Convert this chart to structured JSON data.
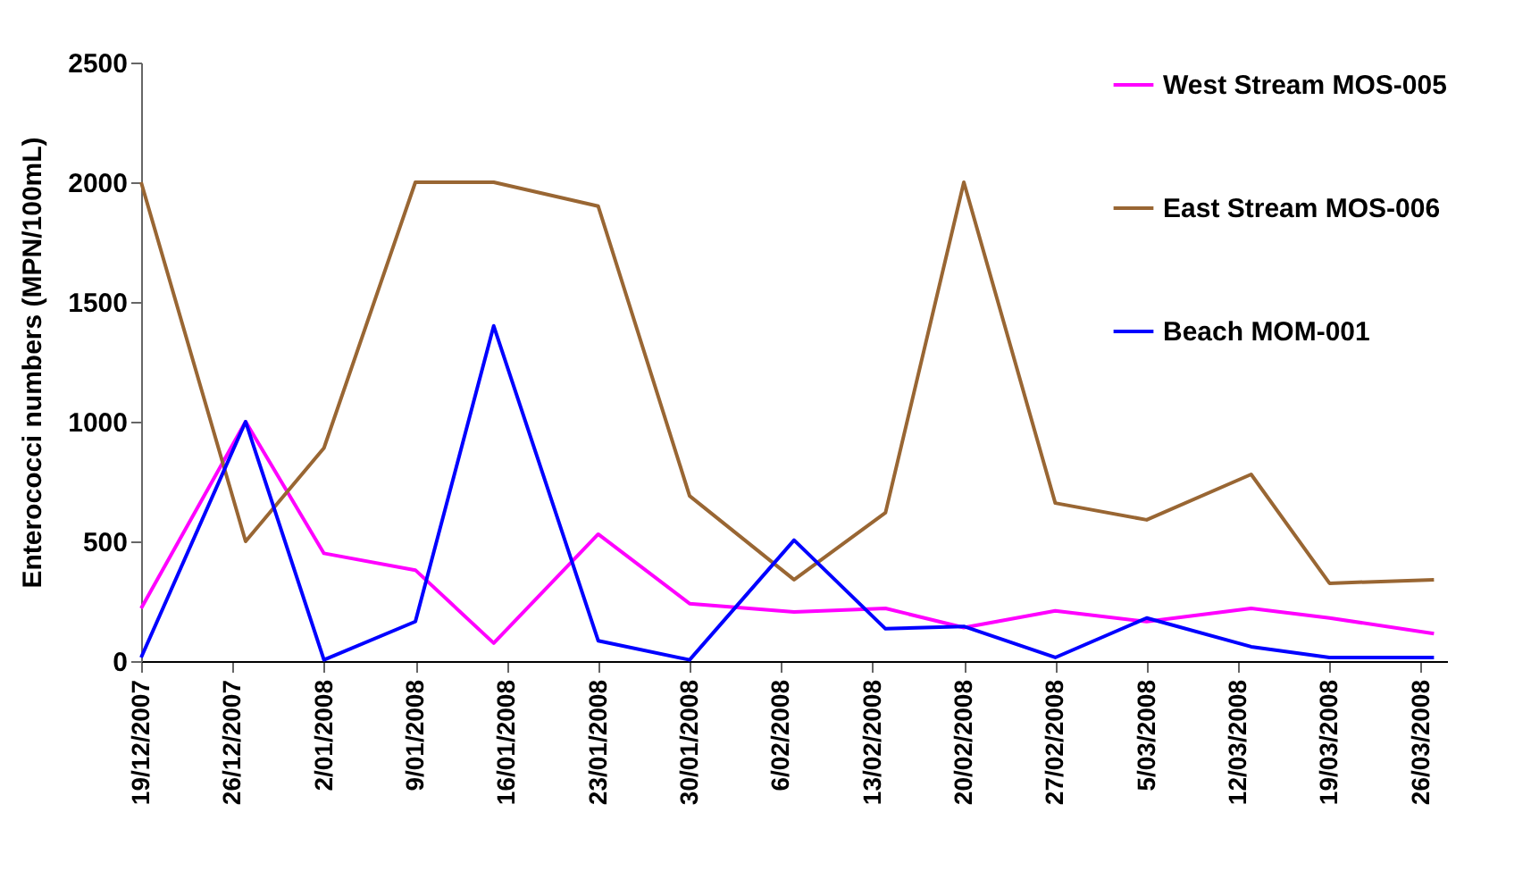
{
  "chart_data": {
    "type": "line",
    "ylabel": "Enterococci numbers (MPN/100mL)",
    "x": [
      "2007-12-19",
      "2007-12-27",
      "2008-01-02",
      "2008-01-09",
      "2008-01-15",
      "2008-01-23",
      "2008-01-30",
      "2008-02-07",
      "2008-02-14",
      "2008-02-20",
      "2008-02-27",
      "2008-03-05",
      "2008-03-13",
      "2008-03-19",
      "2008-03-27"
    ],
    "series": [
      {
        "name": "West Stream MOS-005",
        "color": "#ff00ff",
        "values": [
          220,
          1000,
          450,
          380,
          75,
          530,
          240,
          205,
          220,
          140,
          210,
          165,
          220,
          180,
          115
        ]
      },
      {
        "name": "East Stream MOS-006",
        "color": "#996633",
        "values": [
          2000,
          500,
          890,
          2000,
          2000,
          1900,
          690,
          340,
          620,
          2000,
          660,
          590,
          780,
          325,
          340
        ]
      },
      {
        "name": "Beach MOM-001",
        "color": "#0000ff",
        "values": [
          15,
          1000,
          5,
          165,
          1400,
          85,
          5,
          505,
          135,
          145,
          15,
          180,
          60,
          15,
          15
        ]
      }
    ],
    "xlim": [
      "2007-12-19",
      "2008-03-28"
    ],
    "xticks": [
      {
        "value": "2007-12-19",
        "label": "19/12/2007"
      },
      {
        "value": "2007-12-26",
        "label": "26/12/2007"
      },
      {
        "value": "2008-01-02",
        "label": "2/01/2008"
      },
      {
        "value": "2008-01-09",
        "label": "9/01/2008"
      },
      {
        "value": "2008-01-16",
        "label": "16/01/2008"
      },
      {
        "value": "2008-01-23",
        "label": "23/01/2008"
      },
      {
        "value": "2008-01-30",
        "label": "30/01/2008"
      },
      {
        "value": "2008-02-06",
        "label": "6/02/2008"
      },
      {
        "value": "2008-02-13",
        "label": "13/02/2008"
      },
      {
        "value": "2008-02-20",
        "label": "20/02/2008"
      },
      {
        "value": "2008-02-27",
        "label": "27/02/2008"
      },
      {
        "value": "2008-03-05",
        "label": "5/03/2008"
      },
      {
        "value": "2008-03-12",
        "label": "12/03/2008"
      },
      {
        "value": "2008-03-19",
        "label": "19/03/2008"
      },
      {
        "value": "2008-03-26",
        "label": "26/03/2008"
      }
    ],
    "ylim": [
      0,
      2500
    ],
    "yticks": [
      0,
      500,
      1000,
      1500,
      2000,
      2500
    ],
    "legend": "top right",
    "line_style": "solid"
  }
}
